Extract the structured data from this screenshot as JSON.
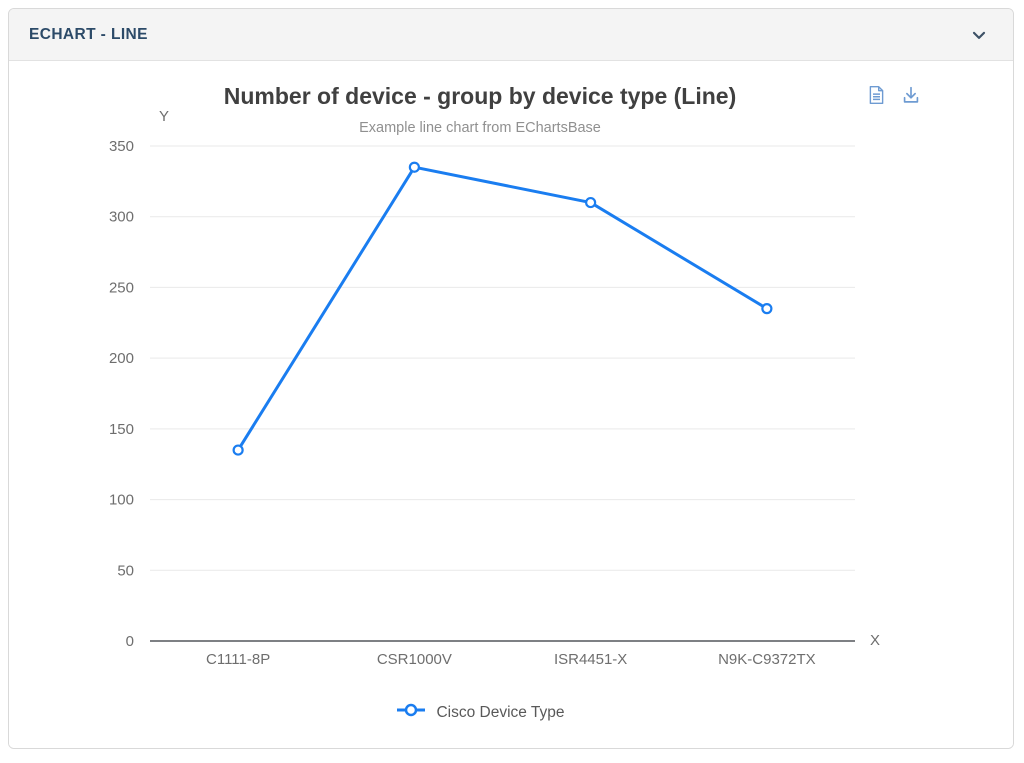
{
  "panel": {
    "header": {
      "title": "ECHART - LINE"
    }
  },
  "toolbox": {
    "data_view_icon": "data-view",
    "save_as_image_icon": "download"
  },
  "chart_data": {
    "type": "line",
    "title": "Number of device - group by device type (Line)",
    "subtitle": "Example line chart from EChartsBase",
    "xlabel": "X",
    "ylabel": "Y",
    "categories": [
      "C1111-8P",
      "CSR1000V",
      "ISR4451-X",
      "N9K-C9372TX"
    ],
    "series": [
      {
        "name": "Cisco Device Type",
        "values": [
          135,
          335,
          310,
          235
        ]
      }
    ],
    "ylim": [
      0,
      350
    ],
    "ytick_interval": 50,
    "grid": true,
    "legend_position": "bottom"
  },
  "colors": {
    "line": "#1a7df0",
    "marker_fill": "#ffffff",
    "grid_line": "#e9e9e9",
    "axis_line": "#54575c",
    "tick_text": "#6e6e6e",
    "title_text": "#404040",
    "subtitle_text": "#909090",
    "legend_text": "#595959",
    "header_text": "#2c4a68",
    "header_bg": "#f4f4f4",
    "panel_border": "#d9d9d9",
    "toolbox_icon": "#6e9bd2",
    "chevron": "#3d5166"
  }
}
